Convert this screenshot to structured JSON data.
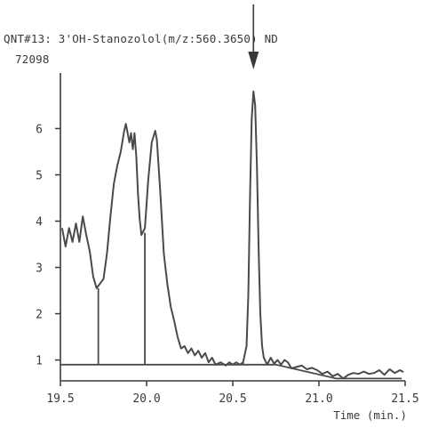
{
  "chart_data": {
    "type": "line",
    "title": "QNT#13: 3'OH-Stanozolol(m/z:560.3650) ND",
    "max_intensity_label": "72098",
    "xlabel": "Time (min.)",
    "ylabel": "",
    "xlim": [
      19.5,
      21.5
    ],
    "ylim": [
      0.55,
      7.2
    ],
    "x_ticks": [
      19.5,
      20.0,
      20.5,
      21.0,
      21.5
    ],
    "x_tick_labels": [
      "19.5",
      "20.0",
      "20.5",
      "21.0",
      "21.5"
    ],
    "y_ticks": [
      1,
      2,
      3,
      4,
      5,
      6
    ],
    "y_tick_labels": [
      "1",
      "2",
      "3",
      "4",
      "5",
      "6"
    ],
    "grid": false,
    "legend": "none",
    "colors": {
      "trace": "#4a4a4a",
      "axis": "#3a3a3a",
      "text": "#3a3a3a"
    },
    "series": [
      {
        "points": [
          [
            19.51,
            3.85
          ],
          [
            19.53,
            3.45
          ],
          [
            19.55,
            3.85
          ],
          [
            19.57,
            3.55
          ],
          [
            19.59,
            3.95
          ],
          [
            19.61,
            3.55
          ],
          [
            19.63,
            4.1
          ],
          [
            19.65,
            3.7
          ],
          [
            19.67,
            3.35
          ],
          [
            19.69,
            2.8
          ],
          [
            19.71,
            2.55
          ],
          [
            19.73,
            2.65
          ],
          [
            19.75,
            2.75
          ],
          [
            19.77,
            3.3
          ],
          [
            19.79,
            4.1
          ],
          [
            19.81,
            4.8
          ],
          [
            19.83,
            5.2
          ],
          [
            19.85,
            5.5
          ],
          [
            19.87,
            5.95
          ],
          [
            19.88,
            6.1
          ],
          [
            19.9,
            5.7
          ],
          [
            19.91,
            5.9
          ],
          [
            19.92,
            5.55
          ],
          [
            19.93,
            5.9
          ],
          [
            19.94,
            5.4
          ],
          [
            19.95,
            4.6
          ],
          [
            19.96,
            4.05
          ],
          [
            19.97,
            3.7
          ],
          [
            19.99,
            3.85
          ],
          [
            20.01,
            4.9
          ],
          [
            20.03,
            5.7
          ],
          [
            20.05,
            5.95
          ],
          [
            20.06,
            5.75
          ],
          [
            20.08,
            4.6
          ],
          [
            20.1,
            3.3
          ],
          [
            20.12,
            2.65
          ],
          [
            20.14,
            2.15
          ],
          [
            20.16,
            1.85
          ],
          [
            20.18,
            1.5
          ],
          [
            20.2,
            1.25
          ],
          [
            20.22,
            1.3
          ],
          [
            20.24,
            1.15
          ],
          [
            20.26,
            1.25
          ],
          [
            20.28,
            1.1
          ],
          [
            20.3,
            1.2
          ],
          [
            20.32,
            1.05
          ],
          [
            20.34,
            1.15
          ],
          [
            20.36,
            0.95
          ],
          [
            20.38,
            1.05
          ],
          [
            20.4,
            0.9
          ],
          [
            20.43,
            0.95
          ],
          [
            20.46,
            0.88
          ],
          [
            20.48,
            0.95
          ],
          [
            20.5,
            0.9
          ],
          [
            20.52,
            0.95
          ],
          [
            20.54,
            0.9
          ],
          [
            20.56,
            0.95
          ],
          [
            20.58,
            1.3
          ],
          [
            20.59,
            2.4
          ],
          [
            20.6,
            4.5
          ],
          [
            20.61,
            6.2
          ],
          [
            20.62,
            6.8
          ],
          [
            20.63,
            6.5
          ],
          [
            20.64,
            5.2
          ],
          [
            20.65,
            3.4
          ],
          [
            20.66,
            2.0
          ],
          [
            20.67,
            1.3
          ],
          [
            20.68,
            1.05
          ],
          [
            20.7,
            0.9
          ],
          [
            20.72,
            1.05
          ],
          [
            20.74,
            0.92
          ],
          [
            20.76,
            1.0
          ],
          [
            20.78,
            0.9
          ],
          [
            20.8,
            1.0
          ],
          [
            20.82,
            0.95
          ],
          [
            20.84,
            0.82
          ],
          [
            20.87,
            0.85
          ],
          [
            20.9,
            0.88
          ],
          [
            20.93,
            0.8
          ],
          [
            20.96,
            0.83
          ],
          [
            20.99,
            0.78
          ],
          [
            21.02,
            0.7
          ],
          [
            21.05,
            0.75
          ],
          [
            21.08,
            0.65
          ],
          [
            21.11,
            0.7
          ],
          [
            21.14,
            0.6
          ],
          [
            21.17,
            0.68
          ],
          [
            21.2,
            0.72
          ],
          [
            21.23,
            0.7
          ],
          [
            21.26,
            0.75
          ],
          [
            21.29,
            0.7
          ],
          [
            21.32,
            0.72
          ],
          [
            21.35,
            0.78
          ],
          [
            21.38,
            0.68
          ],
          [
            21.41,
            0.8
          ],
          [
            21.44,
            0.72
          ],
          [
            21.47,
            0.78
          ],
          [
            21.49,
            0.74
          ]
        ]
      }
    ],
    "baseline": [
      [
        19.5,
        0.9
      ],
      [
        20.75,
        0.9
      ],
      [
        21.1,
        0.6
      ],
      [
        21.48,
        0.6
      ]
    ],
    "integration_markers": [
      {
        "x": 19.72,
        "y_bottom": 0.9,
        "y_top": 2.55
      },
      {
        "x": 19.99,
        "y_bottom": 0.9,
        "y_top": 3.75
      },
      {
        "x": 20.56,
        "y_bottom": 0.9,
        "y_top": 0.95
      },
      {
        "x": 20.7,
        "y_bottom": 0.9,
        "y_top": 0.95
      }
    ],
    "arrow_annotation": {
      "x": 20.62,
      "points_to": "peak"
    }
  }
}
